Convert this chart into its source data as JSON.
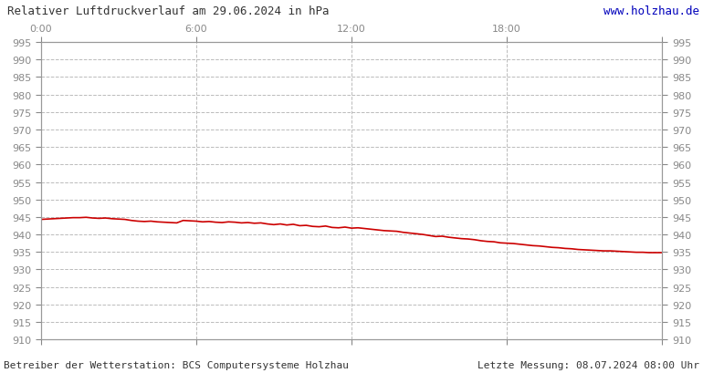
{
  "title": "Relativer Luftdruckverlauf am 29.06.2024 in hPa",
  "url_text": "www.holzhau.de",
  "footer_left": "Betreiber der Wetterstation: BCS Computersysteme Holzhau",
  "footer_right": "Letzte Messung: 08.07.2024 08:00 Uhr",
  "x_ticks": [
    0,
    6,
    12,
    18,
    24
  ],
  "x_tick_labels": [
    "0:00",
    "6:00",
    "12:00",
    "18:00",
    ""
  ],
  "ylim": [
    910,
    995
  ],
  "xlim": [
    0,
    24
  ],
  "y_ticks": [
    910,
    915,
    920,
    925,
    930,
    935,
    940,
    945,
    950,
    955,
    960,
    965,
    970,
    975,
    980,
    985,
    990,
    995
  ],
  "background_color": "#ffffff",
  "plot_bg_color": "#ffffff",
  "grid_color": "#bbbbbb",
  "line_color": "#cc0000",
  "line_width": 1.2,
  "pressure_x": [
    0.0,
    0.25,
    0.5,
    0.75,
    1.0,
    1.25,
    1.5,
    1.75,
    2.0,
    2.25,
    2.5,
    2.75,
    3.0,
    3.25,
    3.5,
    3.75,
    4.0,
    4.25,
    4.5,
    4.75,
    5.0,
    5.25,
    5.5,
    5.75,
    6.0,
    6.25,
    6.5,
    6.75,
    7.0,
    7.25,
    7.5,
    7.75,
    8.0,
    8.25,
    8.5,
    8.75,
    9.0,
    9.25,
    9.5,
    9.75,
    10.0,
    10.25,
    10.5,
    10.75,
    11.0,
    11.25,
    11.5,
    11.75,
    12.0,
    12.25,
    12.5,
    12.75,
    13.0,
    13.25,
    13.5,
    13.75,
    14.0,
    14.25,
    14.5,
    14.75,
    15.0,
    15.25,
    15.5,
    15.75,
    16.0,
    16.25,
    16.5,
    16.75,
    17.0,
    17.25,
    17.5,
    17.75,
    18.0,
    18.25,
    18.5,
    18.75,
    19.0,
    19.25,
    19.5,
    19.75,
    20.0,
    20.25,
    20.5,
    20.75,
    21.0,
    21.25,
    21.5,
    21.75,
    22.0,
    22.25,
    22.5,
    22.75,
    23.0,
    23.25,
    23.5,
    23.75,
    24.0
  ],
  "pressure_y": [
    944.3,
    944.4,
    944.5,
    944.6,
    944.7,
    944.8,
    944.8,
    944.9,
    944.7,
    944.6,
    944.7,
    944.5,
    944.4,
    944.3,
    944.0,
    943.8,
    943.7,
    943.8,
    943.6,
    943.5,
    943.4,
    943.3,
    944.0,
    943.9,
    943.8,
    943.6,
    943.7,
    943.5,
    943.4,
    943.6,
    943.5,
    943.3,
    943.4,
    943.2,
    943.3,
    943.0,
    942.8,
    943.0,
    942.7,
    942.9,
    942.5,
    942.6,
    942.3,
    942.2,
    942.4,
    942.0,
    941.9,
    942.1,
    941.8,
    941.9,
    941.7,
    941.5,
    941.3,
    941.1,
    941.0,
    940.9,
    940.6,
    940.4,
    940.2,
    940.0,
    939.7,
    939.4,
    939.5,
    939.2,
    939.0,
    938.8,
    938.7,
    938.5,
    938.2,
    938.0,
    937.9,
    937.6,
    937.5,
    937.4,
    937.2,
    937.0,
    936.8,
    936.7,
    936.5,
    936.3,
    936.2,
    936.0,
    935.9,
    935.7,
    935.6,
    935.5,
    935.4,
    935.3,
    935.3,
    935.2,
    935.1,
    935.0,
    934.9,
    934.9,
    934.8,
    934.8,
    934.8
  ]
}
